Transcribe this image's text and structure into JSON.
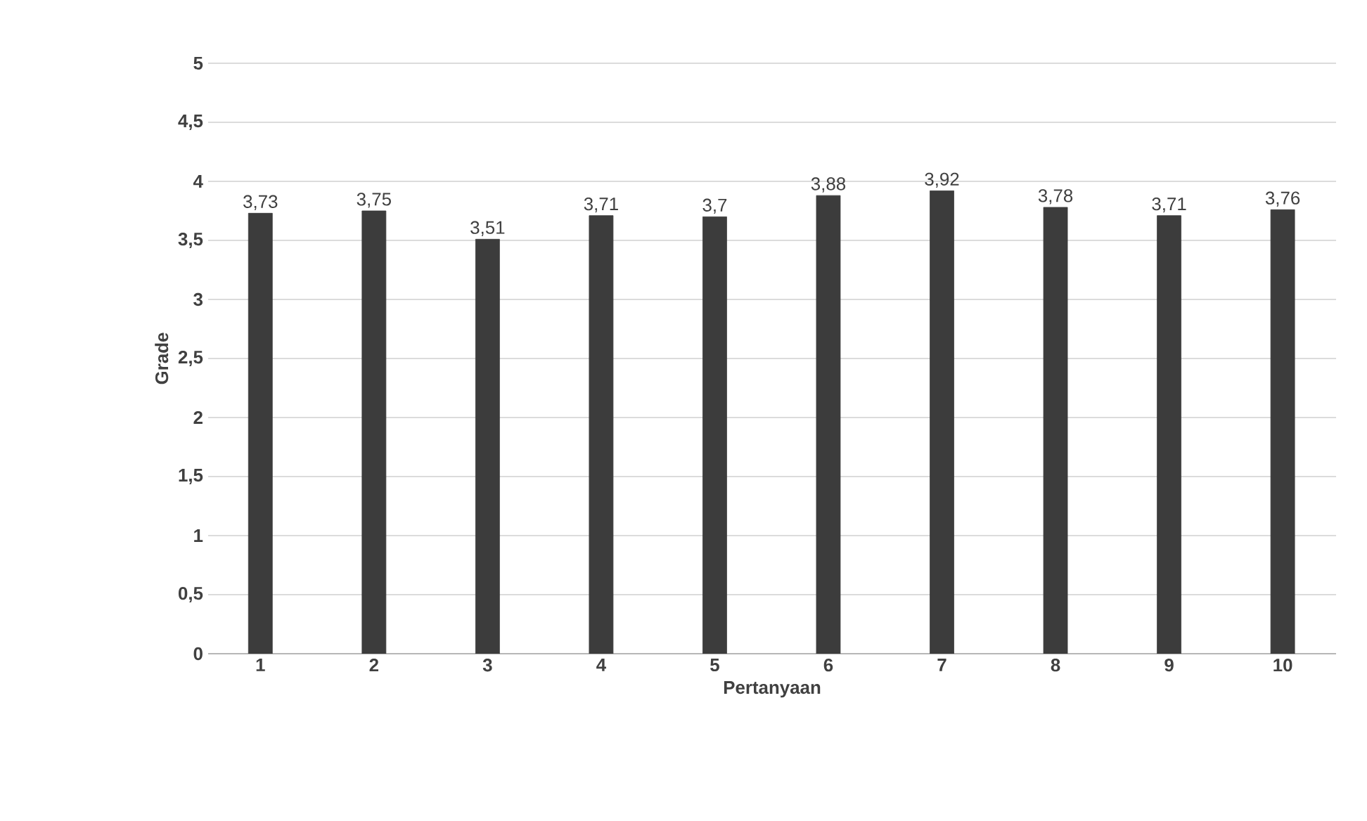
{
  "chart_data": {
    "type": "bar",
    "xlabel": "Pertanyaan",
    "ylabel": "Grade",
    "categories": [
      "1",
      "2",
      "3",
      "4",
      "5",
      "6",
      "7",
      "8",
      "9",
      "10"
    ],
    "values": [
      3.73,
      3.75,
      3.51,
      3.71,
      3.7,
      3.88,
      3.92,
      3.78,
      3.71,
      3.76
    ],
    "value_labels": [
      "3,73",
      "3,75",
      "3,51",
      "3,71",
      "3,7",
      "3,88",
      "3,92",
      "3,78",
      "3,71",
      "3,76"
    ],
    "color": "#3c3c3c",
    "ylim": [
      0,
      5
    ],
    "yticks": [
      0,
      {
        "value": 0.5,
        "label": "0,5"
      },
      1,
      {
        "value": 1.5,
        "label": "1,5"
      },
      2,
      {
        "value": 2.5,
        "label": "2,5"
      },
      3,
      {
        "value": 3.5,
        "label": "3,5"
      },
      4,
      {
        "value": 4.5,
        "label": "4,5"
      },
      5
    ],
    "grid": "y"
  }
}
